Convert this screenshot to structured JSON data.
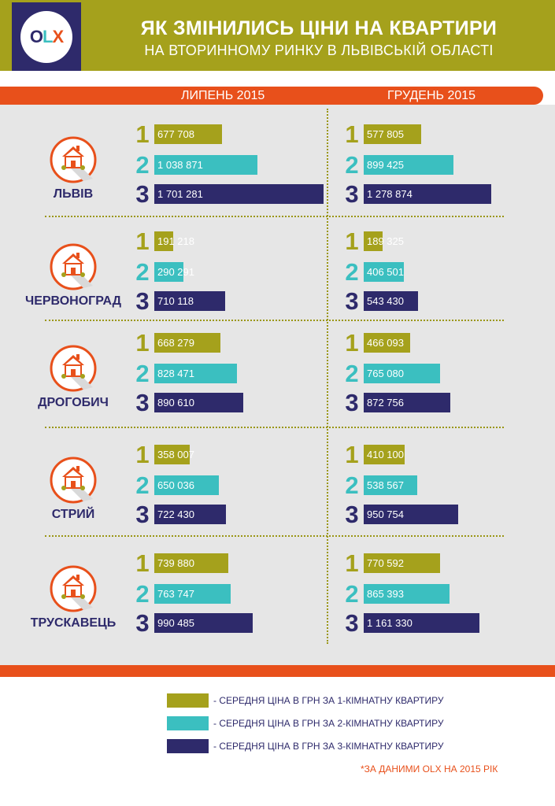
{
  "header": {
    "logo_text": "OLX",
    "title_line1": "ЯК ЗМІНИЛИСЬ ЦІНИ НА КВАРТИРИ",
    "title_line2": "НА ВТОРИННОМУ РИНКУ В ЛЬВІВСЬКІЙ ОБЛАСТІ"
  },
  "periods": {
    "left": "ЛИПЕНЬ 2015",
    "right": "ГРУДЕНЬ 2015"
  },
  "colors": {
    "olive": "#a5a11c",
    "teal": "#3bbfc0",
    "navy": "#2e2a6b",
    "orange": "#e8501b"
  },
  "chart_data": {
    "type": "bar",
    "orientation": "horizontal",
    "room_numbers": [
      "1",
      "2",
      "3"
    ],
    "periods": [
      "ЛИПЕНЬ 2015",
      "ГРУДЕНЬ 2015"
    ],
    "cities": [
      {
        "name": "ЛЬВІВ",
        "july": [
          {
            "value": 677708,
            "label": "677 708"
          },
          {
            "value": 1038871,
            "label": "1 038 871"
          },
          {
            "value": 1701281,
            "label": "1 701 281"
          }
        ],
        "december": [
          {
            "value": 577805,
            "label": "577 805"
          },
          {
            "value": 899425,
            "label": "899 425"
          },
          {
            "value": 1278874,
            "label": "1 278 874"
          }
        ]
      },
      {
        "name": "ЧЕРВОНОГРАД",
        "july": [
          {
            "value": 191218,
            "label": "191 218"
          },
          {
            "value": 290291,
            "label": "290 291"
          },
          {
            "value": 710118,
            "label": "710 118"
          }
        ],
        "december": [
          {
            "value": 189325,
            "label": "189 325"
          },
          {
            "value": 406501,
            "label": "406 501"
          },
          {
            "value": 543430,
            "label": "543 430"
          }
        ]
      },
      {
        "name": "ДРОГОБИЧ",
        "july": [
          {
            "value": 668279,
            "label": "668 279"
          },
          {
            "value": 828471,
            "label": "828 471"
          },
          {
            "value": 890610,
            "label": "890 610"
          }
        ],
        "december": [
          {
            "value": 466093,
            "label": "466 093"
          },
          {
            "value": 765080,
            "label": "765 080"
          },
          {
            "value": 872756,
            "label": "872 756"
          }
        ]
      },
      {
        "name": "СТРИЙ",
        "july": [
          {
            "value": 358007,
            "label": "358 007"
          },
          {
            "value": 650036,
            "label": "650 036"
          },
          {
            "value": 722430,
            "label": "722 430"
          }
        ],
        "december": [
          {
            "value": 410100,
            "label": "410 100"
          },
          {
            "value": 538567,
            "label": "538 567"
          },
          {
            "value": 950754,
            "label": "950 754"
          }
        ]
      },
      {
        "name": "ТРУСКАВЕЦЬ",
        "july": [
          {
            "value": 739880,
            "label": "739 880"
          },
          {
            "value": 763747,
            "label": "763 747"
          },
          {
            "value": 990485,
            "label": "990 485"
          }
        ],
        "december": [
          {
            "value": 770592,
            "label": "770 592"
          },
          {
            "value": 865393,
            "label": "865 393"
          },
          {
            "value": 1161330,
            "label": "1 161 330"
          }
        ]
      }
    ]
  },
  "legend": [
    {
      "text": "- СЕРЕДНЯ ЦІНА В ГРН ЗА 1-КІМНАТНУ КВАРТИРУ",
      "color": "#a5a11c"
    },
    {
      "text": "- СЕРЕДНЯ ЦІНА В ГРН ЗА 2-КІМНАТНУ КВАРТИРУ",
      "color": "#3bbfc0"
    },
    {
      "text": "- СЕРЕДНЯ ЦІНА В ГРН ЗА 3-КІМНАТНУ КВАРТИРУ",
      "color": "#2e2a6b"
    }
  ],
  "source_note": "*ЗА ДАНИМИ OLX НА 2015 РІК"
}
